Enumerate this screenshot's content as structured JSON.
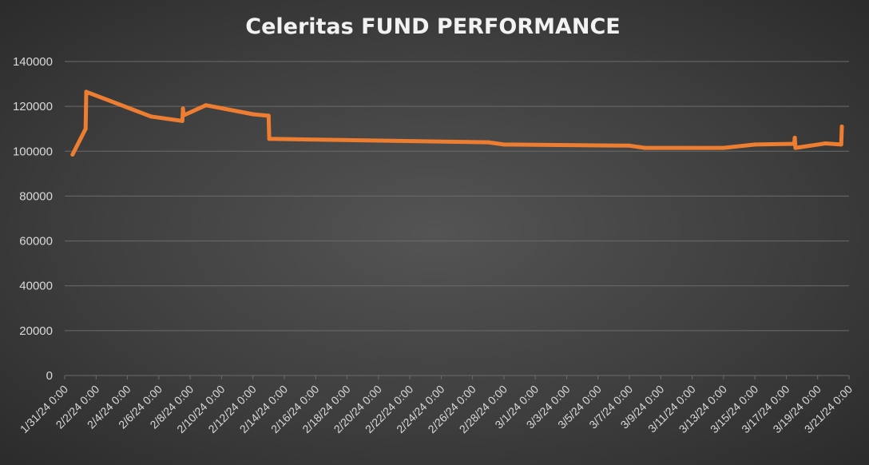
{
  "chart_data": {
    "type": "line",
    "title": "Celeritas FUND PERFORMANCE",
    "xlabel": "",
    "ylabel": "",
    "ylim": [
      0,
      140000
    ],
    "yticks": [
      "0",
      "20000",
      "40000",
      "60000",
      "80000",
      "100000",
      "120000",
      "140000"
    ],
    "xlim": [
      "2024-01-31",
      "2024-03-21"
    ],
    "xticks": [
      "1/31/24 0:00",
      "2/2/24 0:00",
      "2/4/24 0:00",
      "2/6/24 0:00",
      "2/8/24 0:00",
      "2/10/24 0:00",
      "2/12/24 0:00",
      "2/14/24 0:00",
      "2/16/24 0:00",
      "2/18/24 0:00",
      "2/20/24 0:00",
      "2/22/24 0:00",
      "2/24/24 0:00",
      "2/26/24 0:00",
      "2/28/24 0:00",
      "3/1/24 0:00",
      "3/3/24 0:00",
      "3/5/24 0:00",
      "3/7/24 0:00",
      "3/9/24 0:00",
      "3/11/24 0:00",
      "3/13/24 0:00",
      "3/15/24 0:00",
      "3/17/24 0:00",
      "3/19/24 0:00",
      "3/21/24 0:00"
    ],
    "grid": true,
    "legend": "none",
    "series": [
      {
        "color": "#ed7d31",
        "x": [
          "2024-01-31 12:00",
          "2024-02-01 08:00",
          "2024-02-01 09:00",
          "2024-02-05 12:00",
          "2024-02-07 12:00",
          "2024-02-07 13:00",
          "2024-02-07 14:00",
          "2024-02-09 00:00",
          "2024-02-12 00:00",
          "2024-02-13 00:00",
          "2024-02-13 01:00",
          "2024-02-27 00:00",
          "2024-02-28 00:00",
          "2024-03-07 00:00",
          "2024-03-08 00:00",
          "2024-03-13 00:00",
          "2024-03-15 00:00",
          "2024-03-17 12:00",
          "2024-03-17 13:00",
          "2024-03-17 14:00",
          "2024-03-19 12:00",
          "2024-03-20 12:00",
          "2024-03-20 13:00"
        ],
        "y": [
          98500,
          110000,
          126500,
          115500,
          113500,
          119000,
          116000,
          120500,
          116500,
          115800,
          105500,
          104000,
          103000,
          102500,
          101500,
          101500,
          103000,
          103300,
          106000,
          101500,
          103500,
          103000,
          111000
        ]
      }
    ]
  }
}
